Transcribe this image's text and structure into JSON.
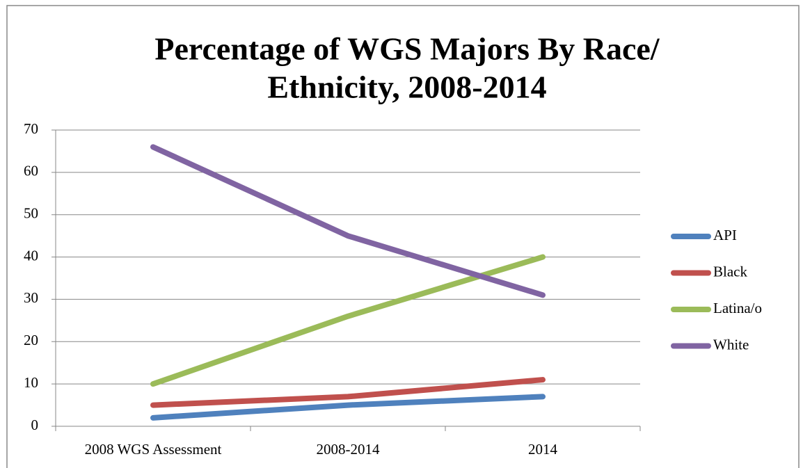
{
  "chart_data": {
    "type": "line",
    "title_lines": [
      "Percentage of WGS Majors By Race/",
      "Ethnicity, 2008-2014"
    ],
    "categories": [
      "2008 WGS Assessment",
      "2008-2014",
      "2014"
    ],
    "series": [
      {
        "name": "API",
        "color": "#4f81bd",
        "values": [
          2,
          5,
          7
        ]
      },
      {
        "name": "Black",
        "color": "#c0504d",
        "values": [
          5,
          7,
          11
        ]
      },
      {
        "name": "Latina/o",
        "color": "#9bbb59",
        "values": [
          10,
          26,
          40
        ]
      },
      {
        "name": "White",
        "color": "#8064a2",
        "values": [
          66,
          45,
          31
        ]
      }
    ],
    "ylim": [
      0,
      70
    ],
    "yticks": [
      0,
      10,
      20,
      30,
      40,
      50,
      60,
      70
    ],
    "grid": true,
    "legend": "right"
  }
}
